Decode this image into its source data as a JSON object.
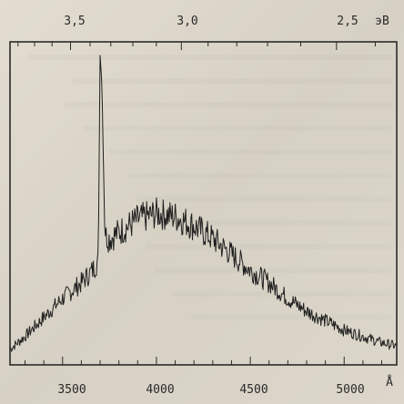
{
  "chart_data": {
    "type": "line",
    "top_axis": {
      "ticks": [
        {
          "value": 3.5,
          "label": "3,5"
        },
        {
          "value": 3.0,
          "label": "3,0"
        },
        {
          "value": 2.5,
          "label": "2,5"
        }
      ],
      "unit": "эВ"
    },
    "bottom_axis": {
      "ticks": [
        {
          "value": 3500,
          "label": "3500"
        },
        {
          "value": 4000,
          "label": "4000"
        },
        {
          "value": 4500,
          "label": "4500"
        },
        {
          "value": 5000,
          "label": "5000"
        }
      ],
      "unit": "Å"
    },
    "xlim": [
      3220,
      5280
    ],
    "ylim": [
      0,
      1
    ],
    "series": [
      {
        "x": [
          3220,
          3300,
          3400,
          3500,
          3600,
          3660,
          3690,
          3700,
          3710,
          3725,
          3750,
          3800,
          3900,
          4000,
          4100,
          4200,
          4300,
          4400,
          4500,
          4600,
          4700,
          4800,
          4900,
          5000,
          5100,
          5200,
          5280
        ],
        "y": [
          0.05,
          0.09,
          0.15,
          0.21,
          0.26,
          0.3,
          0.33,
          0.98,
          0.88,
          0.41,
          0.4,
          0.42,
          0.46,
          0.48,
          0.47,
          0.44,
          0.4,
          0.35,
          0.3,
          0.26,
          0.21,
          0.17,
          0.14,
          0.11,
          0.09,
          0.07,
          0.06
        ],
        "noise": 0.025
      }
    ]
  }
}
